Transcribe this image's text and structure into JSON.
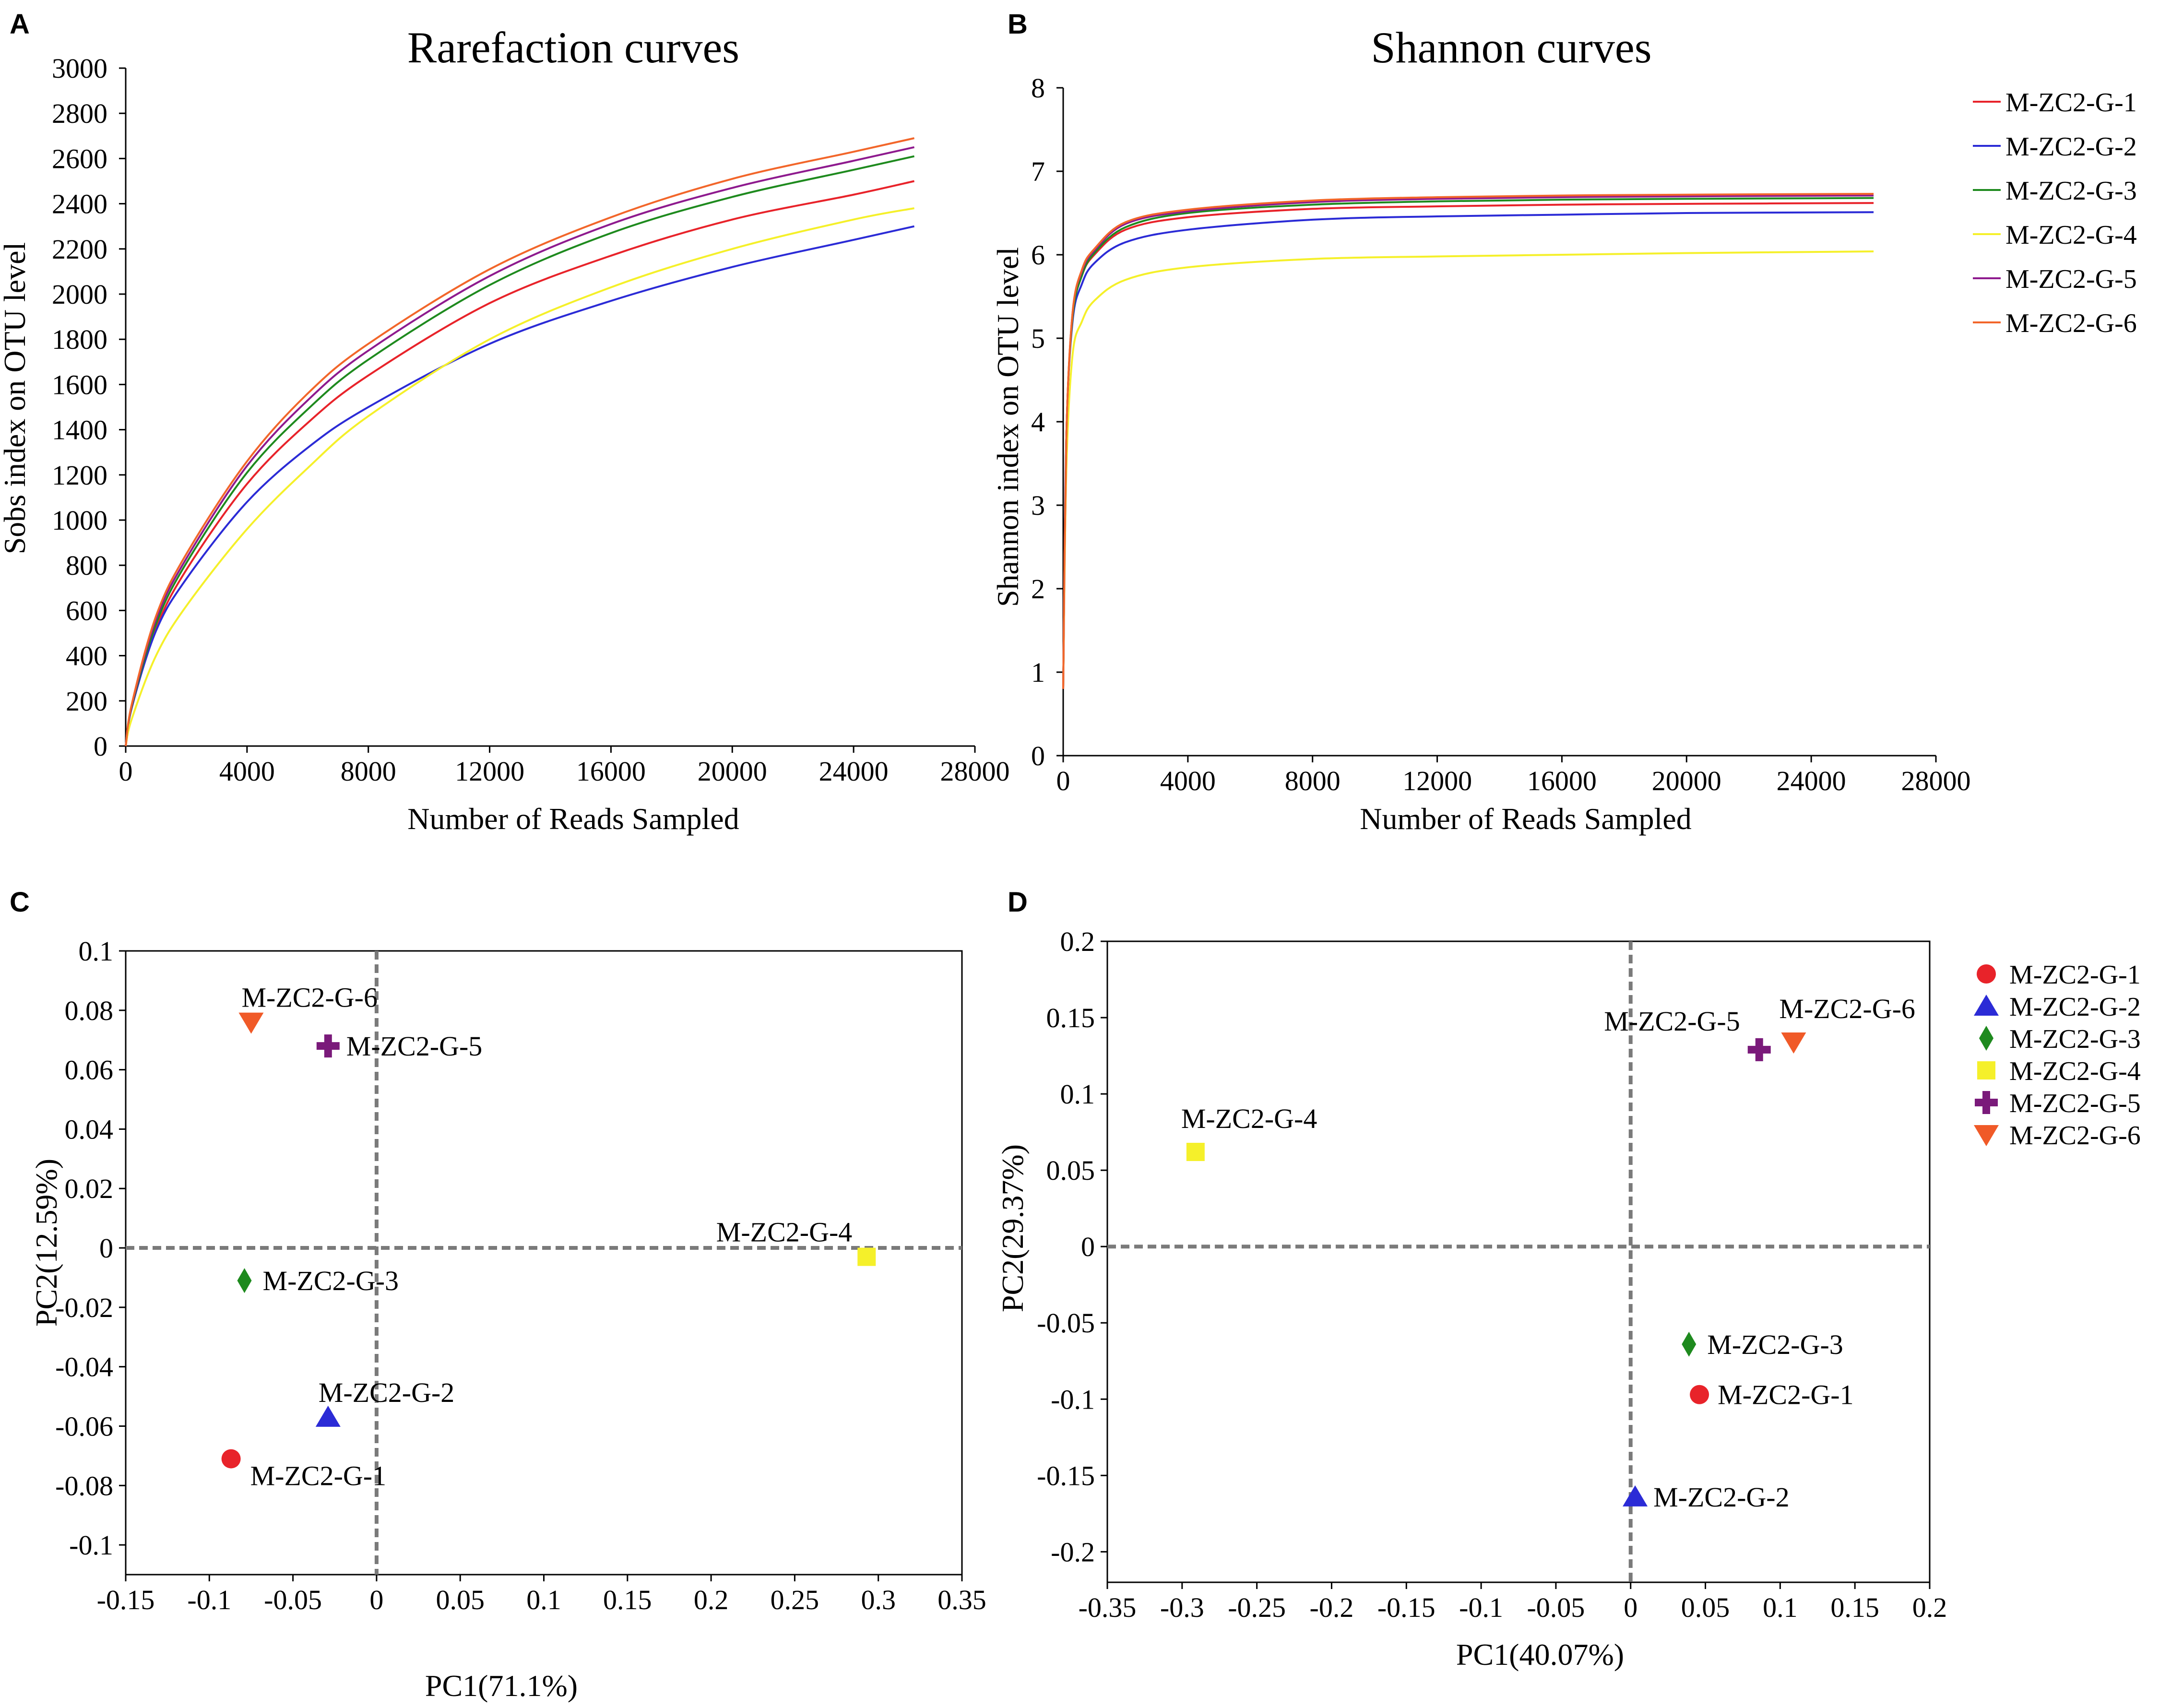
{
  "chart_data": [
    {
      "panel": "A",
      "type": "line",
      "title": "Rarefaction curves",
      "xlabel": "Number of Reads Sampled",
      "ylabel": "Sobs index on OTU level",
      "xlim": [
        0,
        28000
      ],
      "ylim": [
        0,
        3000
      ],
      "xticks": [
        0,
        4000,
        8000,
        12000,
        16000,
        20000,
        24000,
        28000
      ],
      "yticks": [
        0,
        200,
        400,
        600,
        800,
        1000,
        1200,
        1400,
        1600,
        1800,
        2000,
        2200,
        2400,
        2600,
        2800,
        3000
      ],
      "series": [
        {
          "name": "M-ZC2-G-1",
          "color": "#e8232a",
          "x": [
            0,
            200,
            1000,
            2000,
            4000,
            6000,
            8000,
            12000,
            16000,
            20000,
            24000,
            26000
          ],
          "y": [
            0,
            170,
            520,
            780,
            1160,
            1430,
            1640,
            1960,
            2170,
            2330,
            2440,
            2500
          ]
        },
        {
          "name": "M-ZC2-G-2",
          "color": "#2b2bd6",
          "x": [
            0,
            200,
            1000,
            2000,
            4000,
            6000,
            8000,
            12000,
            16000,
            20000,
            24000,
            26000
          ],
          "y": [
            0,
            170,
            510,
            740,
            1080,
            1320,
            1500,
            1780,
            1970,
            2120,
            2240,
            2300
          ]
        },
        {
          "name": "M-ZC2-G-3",
          "color": "#1e8a1e",
          "x": [
            0,
            200,
            1000,
            2000,
            4000,
            6000,
            8000,
            12000,
            16000,
            20000,
            24000,
            26000
          ],
          "y": [
            0,
            175,
            540,
            810,
            1210,
            1490,
            1710,
            2040,
            2270,
            2430,
            2550,
            2610
          ]
        },
        {
          "name": "M-ZC2-G-4",
          "color": "#f5f02a",
          "x": [
            0,
            200,
            1000,
            2000,
            4000,
            6000,
            8000,
            12000,
            16000,
            20000,
            24000,
            26000
          ],
          "y": [
            0,
            120,
            400,
            620,
            960,
            1230,
            1460,
            1800,
            2030,
            2200,
            2330,
            2380
          ]
        },
        {
          "name": "M-ZC2-G-5",
          "color": "#8e1a8e",
          "x": [
            0,
            200,
            1000,
            2000,
            4000,
            6000,
            8000,
            12000,
            16000,
            20000,
            24000,
            26000
          ],
          "y": [
            0,
            180,
            560,
            830,
            1240,
            1530,
            1750,
            2080,
            2310,
            2470,
            2590,
            2650
          ]
        },
        {
          "name": "M-ZC2-G-6",
          "color": "#f2662a",
          "x": [
            0,
            200,
            1000,
            2000,
            4000,
            6000,
            8000,
            12000,
            16000,
            20000,
            24000,
            26000
          ],
          "y": [
            0,
            185,
            575,
            850,
            1260,
            1560,
            1780,
            2110,
            2340,
            2510,
            2630,
            2690
          ]
        }
      ]
    },
    {
      "panel": "B",
      "type": "line",
      "title": "Shannon curves",
      "xlabel": "Number of Reads Sampled",
      "ylabel": "Shannon index on OTU level",
      "xlim": [
        0,
        28000
      ],
      "ylim": [
        0,
        8
      ],
      "xticks": [
        0,
        4000,
        8000,
        12000,
        16000,
        20000,
        24000,
        28000
      ],
      "yticks": [
        0,
        1,
        2,
        3,
        4,
        5,
        6,
        7,
        8
      ],
      "legend_position": "top-right",
      "series": [
        {
          "name": "M-ZC2-G-1",
          "color": "#e8232a",
          "x": [
            0,
            100,
            300,
            600,
            1000,
            2000,
            4000,
            8000,
            12000,
            16000,
            20000,
            26000
          ],
          "y": [
            0.8,
            3.8,
            5.25,
            5.75,
            6.0,
            6.3,
            6.45,
            6.55,
            6.58,
            6.6,
            6.61,
            6.62
          ]
        },
        {
          "name": "M-ZC2-G-2",
          "color": "#2b2bd6",
          "x": [
            0,
            100,
            300,
            600,
            1000,
            2000,
            4000,
            8000,
            12000,
            16000,
            20000,
            26000
          ],
          "y": [
            0.8,
            3.8,
            5.2,
            5.65,
            5.9,
            6.15,
            6.3,
            6.42,
            6.46,
            6.48,
            6.5,
            6.51
          ]
        },
        {
          "name": "M-ZC2-G-3",
          "color": "#1e8a1e",
          "x": [
            0,
            100,
            300,
            600,
            1000,
            2000,
            4000,
            8000,
            12000,
            16000,
            20000,
            26000
          ],
          "y": [
            0.8,
            3.8,
            5.25,
            5.75,
            6.02,
            6.33,
            6.5,
            6.6,
            6.64,
            6.66,
            6.67,
            6.68
          ]
        },
        {
          "name": "M-ZC2-G-4",
          "color": "#f5f02a",
          "x": [
            0,
            100,
            300,
            600,
            1000,
            2000,
            4000,
            8000,
            12000,
            16000,
            20000,
            26000
          ],
          "y": [
            0.8,
            3.4,
            4.8,
            5.2,
            5.45,
            5.7,
            5.85,
            5.95,
            5.98,
            6.0,
            6.02,
            6.04
          ]
        },
        {
          "name": "M-ZC2-G-5",
          "color": "#8e1a8e",
          "x": [
            0,
            100,
            300,
            600,
            1000,
            2000,
            4000,
            8000,
            12000,
            16000,
            20000,
            26000
          ],
          "y": [
            0.8,
            3.8,
            5.3,
            5.8,
            6.05,
            6.37,
            6.52,
            6.63,
            6.67,
            6.69,
            6.7,
            6.71
          ]
        },
        {
          "name": "M-ZC2-G-6",
          "color": "#f2662a",
          "x": [
            0,
            100,
            300,
            600,
            1000,
            2000,
            4000,
            8000,
            12000,
            16000,
            20000,
            26000
          ],
          "y": [
            0.8,
            3.8,
            5.3,
            5.82,
            6.07,
            6.39,
            6.54,
            6.65,
            6.69,
            6.71,
            6.72,
            6.73
          ]
        }
      ]
    },
    {
      "panel": "C",
      "type": "scatter",
      "xlabel": "PC1(71.1%)",
      "ylabel": "PC2(12.59%)",
      "xlim": [
        -0.15,
        0.35
      ],
      "ylim": [
        -0.11,
        0.1
      ],
      "xticks": [
        "-0.15",
        "-0.1",
        "-0.05",
        "0",
        "0.05",
        "0.1",
        "0.15",
        "0.2",
        "0.25",
        "0.3",
        "0.35"
      ],
      "yticks": [
        "-0.1",
        "-0.08",
        "-0.06",
        "-0.04",
        "-0.02",
        "0",
        "0.02",
        "0.04",
        "0.06",
        "0.08",
        "0.1"
      ],
      "points": [
        {
          "name": "M-ZC2-G-1",
          "x": -0.087,
          "y": -0.071,
          "marker": "circle",
          "color": "#e8232a",
          "label_pos": "below-right"
        },
        {
          "name": "M-ZC2-G-2",
          "x": -0.029,
          "y": -0.057,
          "marker": "triangle-up",
          "color": "#2b2bd6",
          "label_pos": "above-right"
        },
        {
          "name": "M-ZC2-G-3",
          "x": -0.079,
          "y": -0.011,
          "marker": "diamond",
          "color": "#1e8a1e",
          "label_pos": "right"
        },
        {
          "name": "M-ZC2-G-4",
          "x": 0.293,
          "y": -0.003,
          "marker": "square",
          "color": "#f5f02a",
          "label_pos": "above-left"
        },
        {
          "name": "M-ZC2-G-5",
          "x": -0.029,
          "y": 0.068,
          "marker": "cross",
          "color": "#7a1a7a",
          "label_pos": "right"
        },
        {
          "name": "M-ZC2-G-6",
          "x": -0.075,
          "y": 0.076,
          "marker": "triangle-down",
          "color": "#f05a28",
          "label_pos": "above-right"
        }
      ]
    },
    {
      "panel": "D",
      "type": "scatter",
      "xlabel": "PC1(40.07%)",
      "ylabel": "PC2(29.37%)",
      "xlim": [
        -0.35,
        0.2
      ],
      "ylim": [
        -0.22,
        0.2
      ],
      "xticks": [
        "-0.35",
        "-0.3",
        "-0.25",
        "-0.2",
        "-0.15",
        "-0.1",
        "-0.05",
        "0",
        "0.05",
        "0.1",
        "0.15",
        "0.2"
      ],
      "yticks": [
        "-0.2",
        "-0.15",
        "-0.1",
        "-0.05",
        "0",
        "0.05",
        "0.1",
        "0.15",
        "0.2"
      ],
      "legend_position": "top-right",
      "points": [
        {
          "name": "M-ZC2-G-1",
          "x": 0.046,
          "y": -0.097,
          "marker": "circle",
          "color": "#e8232a",
          "label_pos": "right"
        },
        {
          "name": "M-ZC2-G-2",
          "x": 0.003,
          "y": -0.164,
          "marker": "triangle-up",
          "color": "#2b2bd6",
          "label_pos": "right"
        },
        {
          "name": "M-ZC2-G-3",
          "x": 0.039,
          "y": -0.064,
          "marker": "diamond",
          "color": "#1e8a1e",
          "label_pos": "right"
        },
        {
          "name": "M-ZC2-G-4",
          "x": -0.291,
          "y": 0.062,
          "marker": "square",
          "color": "#f5f02a",
          "label_pos": "above"
        },
        {
          "name": "M-ZC2-G-5",
          "x": 0.086,
          "y": 0.129,
          "marker": "cross",
          "color": "#7a1a7a",
          "label_pos": "above-left"
        },
        {
          "name": "M-ZC2-G-6",
          "x": 0.109,
          "y": 0.134,
          "marker": "triangle-down",
          "color": "#f05a28",
          "label_pos": "above"
        }
      ]
    }
  ]
}
